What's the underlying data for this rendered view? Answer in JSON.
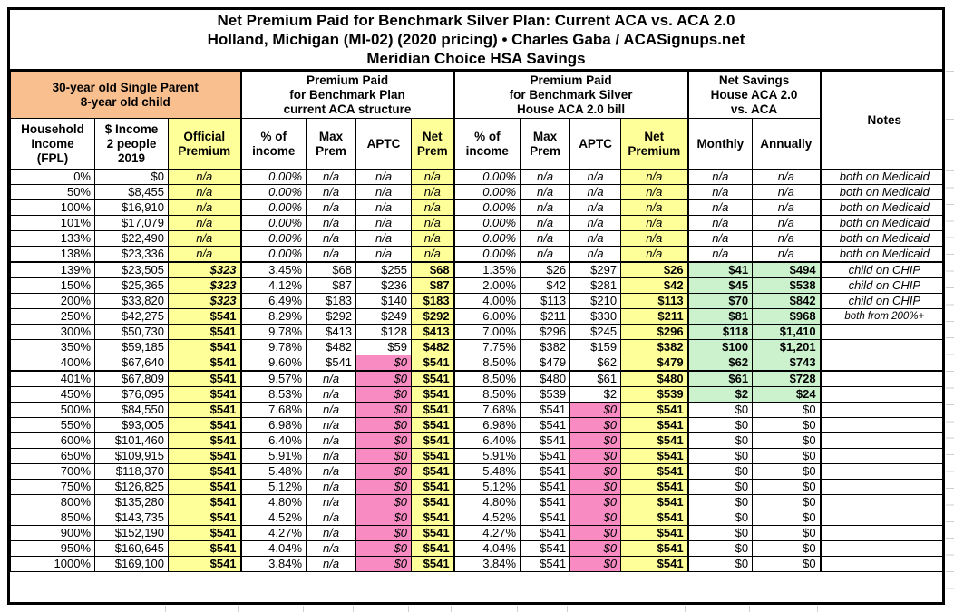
{
  "title": {
    "line1": "Net Premium Paid for Benchmark Silver Plan: Current ACA vs. ACA 2.0",
    "line2": "Holland, Michigan (MI-02) (2020 pricing) • Charles Gaba / ACASignups.net",
    "line3": "Meridian Choice HSA Savings"
  },
  "header": {
    "groups": {
      "household": "30-year old Single Parent\n8-year old child",
      "aca": "Premium Paid\nfor Benchmark Plan\ncurrent ACA structure",
      "aca2": "Premium Paid\nfor Benchmark Silver\nHouse ACA 2.0 bill",
      "savings": "Net Savings\nHouse ACA 2.0\nvs. ACA",
      "notes": "Notes"
    },
    "columns": {
      "fpl": "Household\nIncome\n(FPL)",
      "income": "$ Income\n2 people\n2019",
      "official": "Official\nPremium",
      "aca_pct": "% of\nincome",
      "aca_max": "Max\nPrem",
      "aca_aptc": "APTC",
      "aca_net": "Net\nPrem",
      "aca2_pct": "% of\nincome",
      "aca2_max": "Max\nPrem",
      "aca2_aptc": "APTC",
      "aca2_net": "Net\nPremium",
      "monthly": "Monthly",
      "annually": "Annually"
    }
  },
  "colors": {
    "orange": "#FABF8F",
    "yellow": "#FFFF99",
    "pink": "#F78BC2",
    "green": "#CBF2CD"
  },
  "rows": [
    {
      "fpl": "0%",
      "inc": "$0",
      "off": "n/a",
      "ap": "0.00%",
      "am": "n/a",
      "aa": "n/a",
      "an": "n/a",
      "bp": "0.00%",
      "bm": "n/a",
      "ba": "n/a",
      "bn": "n/a",
      "mo": "n/a",
      "yr": "n/a",
      "note": "both on Medicaid"
    },
    {
      "fpl": "50%",
      "inc": "$8,455",
      "off": "n/a",
      "ap": "0.00%",
      "am": "n/a",
      "aa": "n/a",
      "an": "n/a",
      "bp": "0.00%",
      "bm": "n/a",
      "ba": "n/a",
      "bn": "n/a",
      "mo": "n/a",
      "yr": "n/a",
      "note": "both on Medicaid"
    },
    {
      "fpl": "100%",
      "inc": "$16,910",
      "off": "n/a",
      "ap": "0.00%",
      "am": "n/a",
      "aa": "n/a",
      "an": "n/a",
      "bp": "0.00%",
      "bm": "n/a",
      "ba": "n/a",
      "bn": "n/a",
      "mo": "n/a",
      "yr": "n/a",
      "note": "both on Medicaid"
    },
    {
      "fpl": "101%",
      "inc": "$17,079",
      "off": "n/a",
      "ap": "0.00%",
      "am": "n/a",
      "aa": "n/a",
      "an": "n/a",
      "bp": "0.00%",
      "bm": "n/a",
      "ba": "n/a",
      "bn": "n/a",
      "mo": "n/a",
      "yr": "n/a",
      "note": "both on Medicaid"
    },
    {
      "fpl": "133%",
      "inc": "$22,490",
      "off": "n/a",
      "ap": "0.00%",
      "am": "n/a",
      "aa": "n/a",
      "an": "n/a",
      "bp": "0.00%",
      "bm": "n/a",
      "ba": "n/a",
      "bn": "n/a",
      "mo": "n/a",
      "yr": "n/a",
      "note": "both on Medicaid"
    },
    {
      "fpl": "138%",
      "inc": "$23,336",
      "off": "n/a",
      "ap": "0.00%",
      "am": "n/a",
      "aa": "n/a",
      "an": "n/a",
      "bp": "0.00%",
      "bm": "n/a",
      "ba": "n/a",
      "bn": "n/a",
      "mo": "n/a",
      "yr": "n/a",
      "note": "both on Medicaid"
    },
    {
      "fpl": "139%",
      "inc": "$23,505",
      "off": "$323",
      "oi": 1,
      "tt": 1,
      "ap": "3.45%",
      "am": "$68",
      "aa": "$255",
      "an": "$68",
      "bp": "1.35%",
      "bm": "$26",
      "ba": "$297",
      "bn": "$26",
      "mo": "$41",
      "yr": "$494",
      "note": "child on CHIP"
    },
    {
      "fpl": "150%",
      "inc": "$25,365",
      "off": "$323",
      "oi": 1,
      "ap": "4.12%",
      "am": "$87",
      "aa": "$236",
      "an": "$87",
      "bp": "2.00%",
      "bm": "$42",
      "ba": "$281",
      "bn": "$42",
      "mo": "$45",
      "yr": "$538",
      "note": "child on CHIP"
    },
    {
      "fpl": "200%",
      "inc": "$33,820",
      "off": "$323",
      "oi": 1,
      "ap": "6.49%",
      "am": "$183",
      "aa": "$140",
      "an": "$183",
      "bp": "4.00%",
      "bm": "$113",
      "ba": "$210",
      "bn": "$113",
      "mo": "$70",
      "yr": "$842",
      "note": "child on CHIP"
    },
    {
      "fpl": "250%",
      "inc": "$42,275",
      "off": "$541",
      "ap": "8.29%",
      "am": "$292",
      "aa": "$249",
      "an": "$292",
      "bp": "6.00%",
      "bm": "$211",
      "ba": "$330",
      "bn": "$211",
      "mo": "$81",
      "yr": "$968",
      "note": "both from 200%+",
      "ns": 1
    },
    {
      "fpl": "300%",
      "inc": "$50,730",
      "off": "$541",
      "ap": "9.78%",
      "am": "$413",
      "aa": "$128",
      "an": "$413",
      "bp": "7.00%",
      "bm": "$296",
      "ba": "$245",
      "bn": "$296",
      "mo": "$118",
      "yr": "$1,410",
      "note": ""
    },
    {
      "fpl": "350%",
      "inc": "$59,185",
      "off": "$541",
      "ap": "9.78%",
      "am": "$482",
      "aa": "$59",
      "an": "$482",
      "bp": "7.75%",
      "bm": "$382",
      "ba": "$159",
      "bn": "$382",
      "mo": "$100",
      "yr": "$1,201",
      "note": ""
    },
    {
      "fpl": "400%",
      "inc": "$67,640",
      "off": "$541",
      "ap": "9.60%",
      "am": "$541",
      "aa": "$0",
      "an": "$541",
      "bp": "8.50%",
      "bm": "$479",
      "ba": "$62",
      "bn": "$479",
      "mo": "$62",
      "yr": "$743",
      "note": ""
    },
    {
      "fpl": "401%",
      "inc": "$67,809",
      "off": "$541",
      "tt": 1,
      "ap": "9.57%",
      "am": "n/a",
      "aa": "$0",
      "an": "$541",
      "bp": "8.50%",
      "bm": "$480",
      "ba": "$61",
      "bn": "$480",
      "mo": "$61",
      "yr": "$728",
      "note": ""
    },
    {
      "fpl": "450%",
      "inc": "$76,095",
      "off": "$541",
      "ap": "8.53%",
      "am": "n/a",
      "aa": "$0",
      "an": "$541",
      "bp": "8.50%",
      "bm": "$539",
      "ba": "$2",
      "bn": "$539",
      "mo": "$2",
      "yr": "$24",
      "note": ""
    },
    {
      "fpl": "500%",
      "inc": "$84,550",
      "off": "$541",
      "ap": "7.68%",
      "am": "n/a",
      "aa": "$0",
      "an": "$541",
      "bp": "7.68%",
      "bm": "$541",
      "ba": "$0",
      "bn": "$541",
      "mo": "$0",
      "yr": "$0",
      "note": ""
    },
    {
      "fpl": "550%",
      "inc": "$93,005",
      "off": "$541",
      "ap": "6.98%",
      "am": "n/a",
      "aa": "$0",
      "an": "$541",
      "bp": "6.98%",
      "bm": "$541",
      "ba": "$0",
      "bn": "$541",
      "mo": "$0",
      "yr": "$0",
      "note": ""
    },
    {
      "fpl": "600%",
      "inc": "$101,460",
      "off": "$541",
      "ap": "6.40%",
      "am": "n/a",
      "aa": "$0",
      "an": "$541",
      "bp": "6.40%",
      "bm": "$541",
      "ba": "$0",
      "bn": "$541",
      "mo": "$0",
      "yr": "$0",
      "note": ""
    },
    {
      "fpl": "650%",
      "inc": "$109,915",
      "off": "$541",
      "ap": "5.91%",
      "am": "n/a",
      "aa": "$0",
      "an": "$541",
      "bp": "5.91%",
      "bm": "$541",
      "ba": "$0",
      "bn": "$541",
      "mo": "$0",
      "yr": "$0",
      "note": ""
    },
    {
      "fpl": "700%",
      "inc": "$118,370",
      "off": "$541",
      "ap": "5.48%",
      "am": "n/a",
      "aa": "$0",
      "an": "$541",
      "bp": "5.48%",
      "bm": "$541",
      "ba": "$0",
      "bn": "$541",
      "mo": "$0",
      "yr": "$0",
      "note": ""
    },
    {
      "fpl": "750%",
      "inc": "$126,825",
      "off": "$541",
      "ap": "5.12%",
      "am": "n/a",
      "aa": "$0",
      "an": "$541",
      "bp": "5.12%",
      "bm": "$541",
      "ba": "$0",
      "bn": "$541",
      "mo": "$0",
      "yr": "$0",
      "note": ""
    },
    {
      "fpl": "800%",
      "inc": "$135,280",
      "off": "$541",
      "ap": "4.80%",
      "am": "n/a",
      "aa": "$0",
      "an": "$541",
      "bp": "4.80%",
      "bm": "$541",
      "ba": "$0",
      "bn": "$541",
      "mo": "$0",
      "yr": "$0",
      "note": ""
    },
    {
      "fpl": "850%",
      "inc": "$143,735",
      "off": "$541",
      "ap": "4.52%",
      "am": "n/a",
      "aa": "$0",
      "an": "$541",
      "bp": "4.52%",
      "bm": "$541",
      "ba": "$0",
      "bn": "$541",
      "mo": "$0",
      "yr": "$0",
      "note": ""
    },
    {
      "fpl": "900%",
      "inc": "$152,190",
      "off": "$541",
      "ap": "4.27%",
      "am": "n/a",
      "aa": "$0",
      "an": "$541",
      "bp": "4.27%",
      "bm": "$541",
      "ba": "$0",
      "bn": "$541",
      "mo": "$0",
      "yr": "$0",
      "note": ""
    },
    {
      "fpl": "950%",
      "inc": "$160,645",
      "off": "$541",
      "ap": "4.04%",
      "am": "n/a",
      "aa": "$0",
      "an": "$541",
      "bp": "4.04%",
      "bm": "$541",
      "ba": "$0",
      "bn": "$541",
      "mo": "$0",
      "yr": "$0",
      "note": ""
    },
    {
      "fpl": "1000%",
      "inc": "$169,100",
      "off": "$541",
      "ap": "3.84%",
      "am": "n/a",
      "aa": "$0",
      "an": "$541",
      "bp": "3.84%",
      "bm": "$541",
      "ba": "$0",
      "bn": "$541",
      "mo": "$0",
      "yr": "$0",
      "note": ""
    }
  ]
}
